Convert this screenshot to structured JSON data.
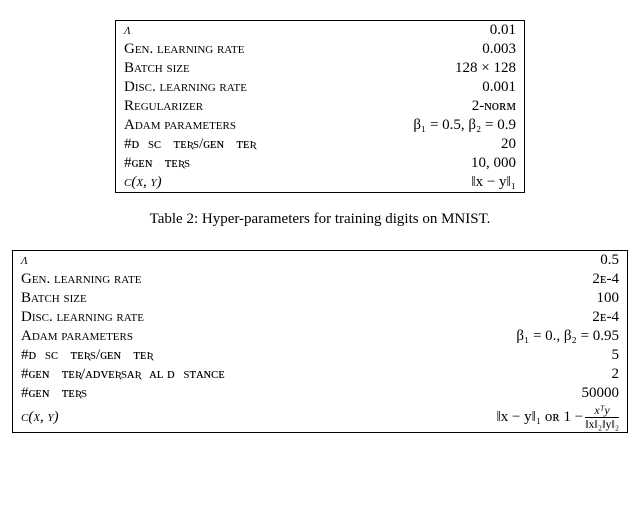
{
  "table1": {
    "rows": [
      {
        "param": "λ",
        "value": "0.01",
        "param_sc": false
      },
      {
        "param": "Gen. learning rate",
        "value": "0.003",
        "param_sc": true
      },
      {
        "param": "Batch size",
        "value": "128 × 128",
        "param_sc": true
      },
      {
        "param": "Disc. learning rate",
        "value": "0.001",
        "param_sc": true
      },
      {
        "param": "Regularizer",
        "value": "2-ɴᴏʀᴍ",
        "param_sc": true
      },
      {
        "param": "Adam parameters",
        "value": "β₁ = 0.5, β₂ = 0.9",
        "param_sc": true
      },
      {
        "param": "#ᴅɪsᴄ ɪᴛᴇʀs/ɢᴇɴ ɪᴛᴇʀ",
        "value": "20",
        "param_sc": false
      },
      {
        "param": "#ɢᴇɴ ɪᴛᴇʀs",
        "value": "10, 000",
        "param_sc": false
      },
      {
        "param": "c(x, y)",
        "value": "‖x − y‖₁",
        "param_sc": false
      }
    ]
  },
  "caption": "Table 2: Hyper-parameters for training digits on MNIST.",
  "table2": {
    "rows": [
      {
        "param": "λ",
        "value": "0.5",
        "param_sc": false
      },
      {
        "param": "Gen. learning rate",
        "value": "2ᴇ-4",
        "param_sc": true
      },
      {
        "param": "Batch size",
        "value": "100",
        "param_sc": true
      },
      {
        "param": "Disc. learning rate",
        "value": "2ᴇ-4",
        "param_sc": true
      },
      {
        "param": "Adam parameters",
        "value": "β₁ = 0., β₂ = 0.95",
        "param_sc": true
      },
      {
        "param": "#ᴅɪsᴄ ɪᴛᴇʀs/ɢᴇɴ ɪᴛᴇʀ",
        "value": "5",
        "param_sc": false
      },
      {
        "param": "#ɢᴇɴ ɪᴛᴇʀ/ᴀᴅᴠᴇʀsᴀʀɪᴀʟ ᴅɪsᴛᴀɴᴄᴇ",
        "value": "2",
        "param_sc": false
      },
      {
        "param": "#ɢᴇɴ ɪᴛᴇʀs",
        "value": "50000",
        "param_sc": false
      },
      {
        "param": "c(x, y)",
        "value": "__FRAC__",
        "param_sc": false
      }
    ]
  },
  "frac": {
    "prefix": "‖x − y‖₁ ᴏʀ 1 − ",
    "num": "xᵀy",
    "den": "‖x‖₂‖y‖₂"
  }
}
